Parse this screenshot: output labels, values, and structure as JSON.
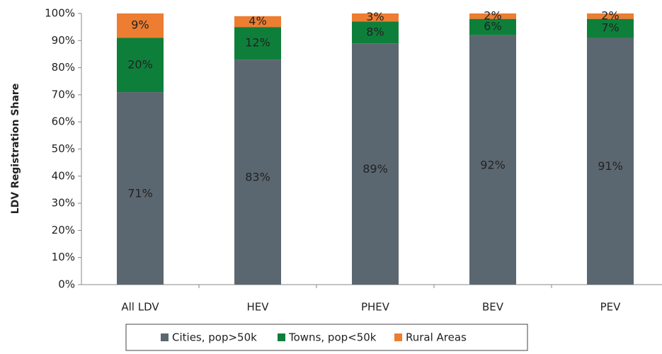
{
  "chart_data": {
    "type": "stacked-bar",
    "y_axis_label": "LDV Registration Share",
    "categories": [
      "All LDV",
      "HEV",
      "PHEV",
      "BEV",
      "PEV"
    ],
    "series": [
      {
        "name": "Cities, pop>50k",
        "color": "#5b6770",
        "values": [
          71,
          83,
          89,
          92,
          91
        ],
        "value_labels": [
          "71%",
          "83%",
          "89%",
          "92%",
          "91%"
        ]
      },
      {
        "name": "Towns, pop<50k",
        "color": "#0e7f3a",
        "values": [
          20,
          12,
          8,
          6,
          7
        ],
        "value_labels": [
          "20%",
          "12%",
          "8%",
          "6%",
          "7%"
        ]
      },
      {
        "name": "Rural Areas",
        "color": "#ed7d31",
        "values": [
          9,
          4,
          3,
          2,
          2
        ],
        "value_labels": [
          "9%",
          "4%",
          "3%",
          "2%",
          "2%"
        ]
      }
    ],
    "ylim": [
      0,
      100
    ],
    "yticks": [
      {
        "value": 0,
        "label": "0%"
      },
      {
        "value": 10,
        "label": "10%"
      },
      {
        "value": 20,
        "label": "20%"
      },
      {
        "value": 30,
        "label": "30%"
      },
      {
        "value": 40,
        "label": "40%"
      },
      {
        "value": 50,
        "label": "50%"
      },
      {
        "value": 60,
        "label": "60%"
      },
      {
        "value": 70,
        "label": "70%"
      },
      {
        "value": 80,
        "label": "80%"
      },
      {
        "value": 90,
        "label": "90%"
      },
      {
        "value": 100,
        "label": "100%"
      }
    ],
    "legend": "bottom"
  }
}
